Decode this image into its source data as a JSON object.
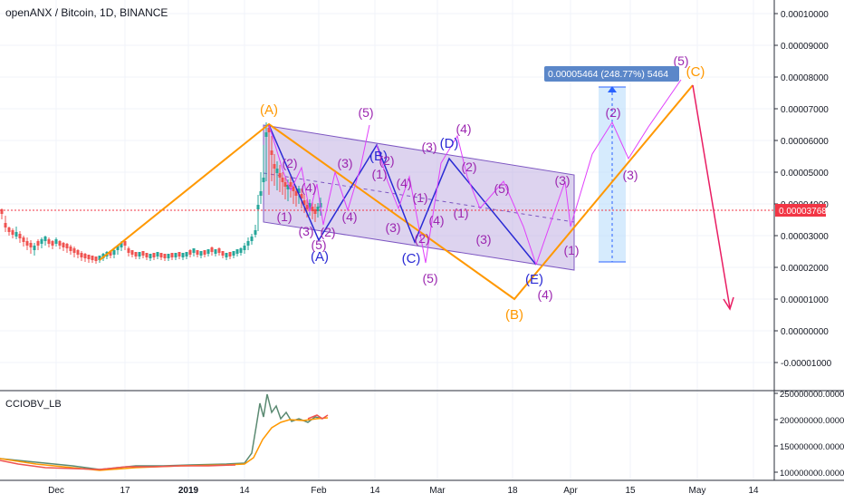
{
  "header": {
    "symbol_title": "openANX / Bitcoin, 1D, BINANCE"
  },
  "indicator": {
    "title": "CCIOBV_LB"
  },
  "price_scale": {
    "ticks": [
      "0.00010000",
      "0.00009000",
      "0.00008000",
      "0.00007000",
      "0.00006000",
      "0.00005000",
      "0.00004000",
      "0.00003000",
      "0.00002000",
      "0.00001000",
      "0.00000000",
      "-0.00001000"
    ],
    "current_price": "0.00003768",
    "current_price_color": "#f23645"
  },
  "indicator_scale": {
    "ticks": [
      "250000000.0000",
      "200000000.0000",
      "150000000.0000",
      "100000000.0000"
    ]
  },
  "time_axis": {
    "labels": [
      "Dec",
      "17",
      "2019",
      "14",
      "Feb",
      "14",
      "Mar",
      "18",
      "Apr",
      "15",
      "May",
      "14"
    ]
  },
  "measure_label": {
    "text": "0.00005464 (248.77%) 5464"
  },
  "colors": {
    "up": "#26a69a",
    "down": "#ef5350",
    "wave_orange": "#ff9800",
    "wave_blue": "#2a2ad4",
    "wave_magenta": "#e040fb",
    "wave_text_magenta": "#9c27b0",
    "channel_fill": "#b39ddb",
    "obv_green": "#5b8a72",
    "obv_orange": "#ff9800",
    "obv_red": "#ef5350",
    "arrow_red": "#e91e63",
    "measure_blue": "#2962ff"
  },
  "wave_labels": {
    "orange": [
      "(A)",
      "(B)",
      "(C)"
    ],
    "blue": [
      "(A)",
      "(B)",
      "(C)",
      "(D)",
      "(E)"
    ],
    "magenta": [
      "(1)",
      "(2)",
      "(3)",
      "(4)",
      "(5)",
      "(2)",
      "(3)",
      "(4)",
      "(5)",
      "(1)",
      "(2)",
      "(3)",
      "(4)",
      "(1)",
      "(2)",
      "(3)",
      "(4)",
      "(5)",
      "(1)",
      "(2)",
      "(3)",
      "(4)",
      "(5)",
      "(3)",
      "(1)",
      "(2)",
      "(3)",
      "(4)",
      "(5)",
      "(4)",
      "(5)",
      "(1)",
      "(2)",
      "(3)",
      "(4)",
      "(5)"
    ]
  }
}
